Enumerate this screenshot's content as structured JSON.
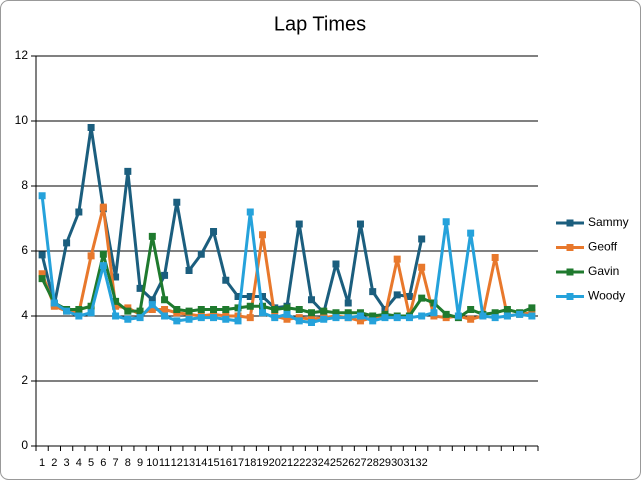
{
  "chart_data": {
    "type": "line",
    "title": "Lap Times",
    "categories": [
      1,
      2,
      3,
      4,
      5,
      6,
      7,
      8,
      9,
      10,
      11,
      12,
      13,
      14,
      15,
      16,
      17,
      18,
      19,
      20,
      21,
      22,
      23,
      24,
      25,
      26,
      27,
      28,
      29,
      30,
      31,
      32,
      null,
      null,
      null,
      null,
      null,
      null,
      null,
      null,
      null
    ],
    "series": [
      {
        "name": "Sammy",
        "color": "#1b5e7e",
        "values": [
          5.88,
          4.35,
          6.25,
          7.2,
          9.8,
          7.3,
          5.2,
          8.45,
          4.85,
          4.5,
          5.25,
          7.5,
          5.4,
          5.9,
          6.6,
          5.1,
          4.6,
          4.6,
          4.6,
          4.25,
          4.3,
          6.83,
          4.5,
          4.1,
          5.6,
          4.4,
          6.83,
          4.75,
          4.2,
          4.65,
          4.6,
          6.37,
          null,
          null,
          null,
          null,
          null,
          null,
          null,
          null,
          null
        ]
      },
      {
        "name": "Geoff",
        "color": "#e8782c",
        "values": [
          5.3,
          4.3,
          4.15,
          4.1,
          5.85,
          7.35,
          4.3,
          4.25,
          4.05,
          4.2,
          4.2,
          4.1,
          4.05,
          4.0,
          4.05,
          4.0,
          4.0,
          3.95,
          6.5,
          4.0,
          3.9,
          3.95,
          3.9,
          3.95,
          4.0,
          3.95,
          3.85,
          3.95,
          4.0,
          5.75,
          4.0,
          5.5,
          4.0,
          3.95,
          4.0,
          3.9,
          4.0,
          5.8,
          4.0,
          4.05,
          4.1
        ]
      },
      {
        "name": "Gavin",
        "color": "#1f7a2e",
        "values": [
          5.15,
          4.4,
          4.2,
          4.2,
          4.3,
          5.9,
          4.45,
          4.15,
          4.15,
          6.45,
          4.5,
          4.2,
          4.15,
          4.2,
          4.2,
          4.2,
          4.25,
          4.3,
          4.3,
          4.2,
          4.25,
          4.2,
          4.1,
          4.15,
          4.1,
          4.1,
          4.1,
          4.0,
          4.05,
          4.0,
          4.0,
          4.55,
          4.4,
          4.05,
          3.95,
          4.2,
          4.05,
          4.1,
          4.2,
          4.1,
          4.25
        ]
      },
      {
        "name": "Woody",
        "color": "#25a2db",
        "values": [
          7.7,
          4.4,
          4.15,
          4.0,
          4.1,
          5.55,
          4.0,
          3.9,
          3.95,
          4.35,
          4.0,
          3.85,
          3.9,
          3.95,
          3.95,
          3.9,
          3.85,
          7.2,
          4.1,
          3.95,
          4.05,
          3.85,
          3.8,
          3.9,
          3.95,
          3.95,
          4.0,
          3.85,
          3.95,
          3.95,
          3.95,
          4.0,
          4.1,
          6.9,
          4.0,
          6.55,
          4.0,
          3.95,
          4.0,
          4.05,
          4.0
        ]
      }
    ],
    "ylim": [
      0,
      12
    ],
    "yticks": [
      0,
      2,
      4,
      6,
      8,
      10,
      12
    ],
    "grid": true,
    "legend": "right"
  }
}
